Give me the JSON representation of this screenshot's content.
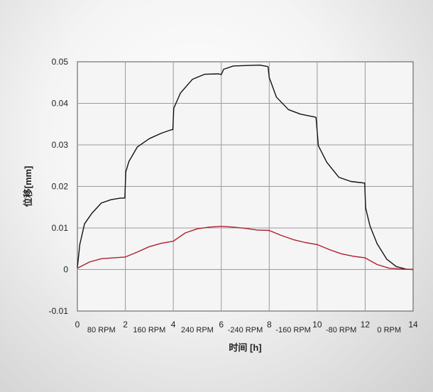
{
  "chart_data": {
    "type": "line",
    "xlabel": "时间 [h]",
    "ylabel": "位移[mm]",
    "xlim": [
      0,
      14
    ],
    "ylim": [
      -0.01,
      0.05
    ],
    "x_ticks": [
      0,
      2,
      4,
      6,
      8,
      10,
      12,
      14
    ],
    "y_ticks": [
      -0.01,
      0,
      0.01,
      0.02,
      0.03,
      0.04,
      0.05
    ],
    "y_tick_labels": [
      "-0.01",
      "0",
      "0.01",
      "0.02",
      "0.03",
      "0.04",
      "0.05"
    ],
    "grid": true,
    "segment_labels": [
      {
        "x": 1,
        "text": "80 RPM"
      },
      {
        "x": 3,
        "text": "160 RPM"
      },
      {
        "x": 5,
        "text": "240 RPM"
      },
      {
        "x": 7,
        "text": "-240 RPM"
      },
      {
        "x": 9,
        "text": "-160 RPM"
      },
      {
        "x": 11,
        "text": "-80 RPM"
      },
      {
        "x": 13,
        "text": "0 RPM"
      }
    ],
    "series": [
      {
        "color": "#111111",
        "x": [
          0,
          0.1,
          0.3,
          0.6,
          1.0,
          1.4,
          1.8,
          1.98,
          2.02,
          2.15,
          2.5,
          3.0,
          3.5,
          3.9,
          3.98,
          4.02,
          4.3,
          4.8,
          5.3,
          5.9,
          6.0,
          6.1,
          6.5,
          7.0,
          7.6,
          7.9,
          7.95,
          8.0,
          8.3,
          8.8,
          9.3,
          9.9,
          9.95,
          10.05,
          10.4,
          10.9,
          11.4,
          11.98,
          12.02,
          12.2,
          12.5,
          12.9,
          13.3,
          13.7,
          14.0
        ],
        "y": [
          0.0005,
          0.006,
          0.011,
          0.0135,
          0.016,
          0.0168,
          0.0172,
          0.0172,
          0.0235,
          0.026,
          0.0295,
          0.0315,
          0.0328,
          0.0336,
          0.0337,
          0.0388,
          0.0425,
          0.0458,
          0.047,
          0.0471,
          0.0469,
          0.0482,
          0.049,
          0.0491,
          0.0492,
          0.0489,
          0.0488,
          0.0462,
          0.0415,
          0.0385,
          0.0374,
          0.0367,
          0.0366,
          0.0298,
          0.0258,
          0.0222,
          0.0212,
          0.0208,
          0.0148,
          0.0105,
          0.0062,
          0.0025,
          0.0007,
          0.0001,
          0.0
        ]
      },
      {
        "color": "#b01e2a",
        "x": [
          0,
          0.5,
          1.0,
          1.5,
          2.0,
          2.5,
          3.0,
          3.5,
          4.0,
          4.5,
          5.0,
          5.5,
          6.0,
          6.5,
          7.0,
          7.5,
          8.0,
          8.5,
          9.0,
          9.5,
          10.0,
          10.5,
          11.0,
          11.5,
          12.0,
          12.5,
          13.0,
          13.5,
          14.0
        ],
        "y": [
          0.0003,
          0.0018,
          0.0026,
          0.0028,
          0.003,
          0.0042,
          0.0055,
          0.0063,
          0.0068,
          0.0088,
          0.0098,
          0.0102,
          0.0104,
          0.0102,
          0.0099,
          0.0095,
          0.0094,
          0.0082,
          0.0072,
          0.0065,
          0.006,
          0.0048,
          0.0038,
          0.0032,
          0.0028,
          0.0012,
          0.0003,
          0.0001,
          0.0
        ]
      }
    ]
  }
}
